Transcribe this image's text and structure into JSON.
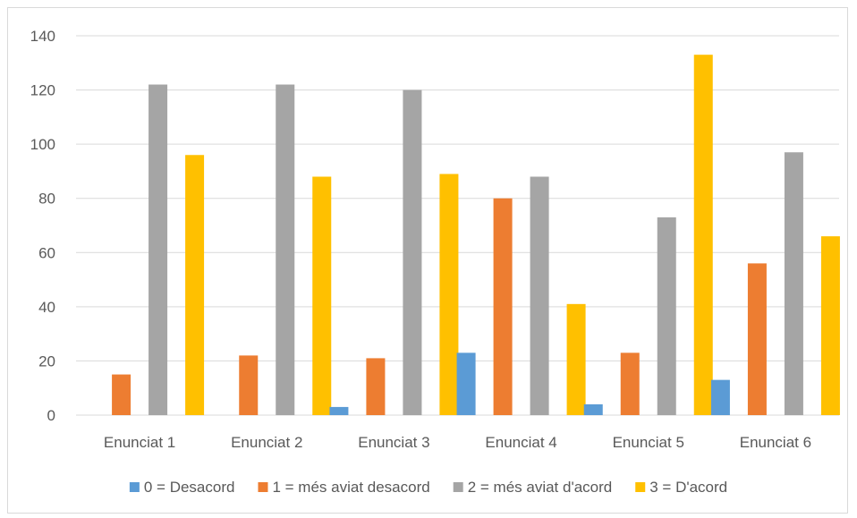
{
  "chart_data": {
    "type": "bar",
    "title": "",
    "xlabel": "",
    "ylabel": "",
    "categories": [
      "Enunciat 1",
      "Enunciat 2",
      "Enunciat 3",
      "Enunciat 4",
      "Enunciat 5",
      "Enunciat 6"
    ],
    "ylim": [
      0,
      140
    ],
    "yticks": [
      0,
      20,
      40,
      60,
      80,
      100,
      120,
      140
    ],
    "grid": true,
    "legend_position": "bottom",
    "series": [
      {
        "name": "0 = Desacord",
        "color": "#5b9bd5",
        "values": [
          0,
          0,
          3,
          23,
          4,
          13
        ]
      },
      {
        "name": "1 = més aviat desacord",
        "color": "#ed7d31",
        "values": [
          15,
          22,
          21,
          80,
          23,
          56
        ]
      },
      {
        "name": "2 = més aviat d'acord",
        "color": "#a5a5a5",
        "values": [
          122,
          122,
          120,
          88,
          73,
          97
        ]
      },
      {
        "name": "3 = D'acord",
        "color": "#ffc000",
        "values": [
          96,
          88,
          89,
          41,
          133,
          66
        ]
      }
    ]
  }
}
